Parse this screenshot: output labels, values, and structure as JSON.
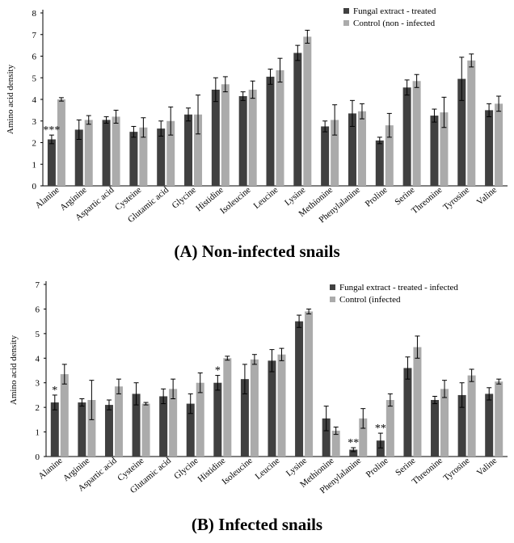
{
  "chart_data": [
    {
      "type": "bar",
      "caption": "(A) Non-infected snails",
      "ylabel": "Amino acid density",
      "ylim": [
        0,
        8
      ],
      "yticks": [
        0,
        1,
        2,
        3,
        4,
        5,
        6,
        7,
        8
      ],
      "grid": false,
      "legend_position": "top-right",
      "categories": [
        "Alanine",
        "Arginine",
        "Aspartic acid",
        "Cysteine",
        "Glutamic acid",
        "Glycine",
        "Histidine",
        "Isoleucine",
        "Leucine",
        "Lysine",
        "Methionine",
        "Phenylalanine",
        "Proline",
        "Serine",
        "Threonine",
        "Tyrosine",
        "Valine"
      ],
      "series": [
        {
          "name": "Fungal extract - treated",
          "color": "#404040",
          "values": [
            2.15,
            2.6,
            3.05,
            2.5,
            2.65,
            3.3,
            4.45,
            4.15,
            5.05,
            6.15,
            2.75,
            3.35,
            2.1,
            4.55,
            3.25,
            4.95,
            3.5
          ],
          "errors": [
            0.2,
            0.45,
            0.15,
            0.25,
            0.35,
            0.3,
            0.55,
            0.2,
            0.35,
            0.35,
            0.25,
            0.6,
            0.15,
            0.35,
            0.3,
            1.0,
            0.3
          ]
        },
        {
          "name": "Control (non - infected",
          "color": "#ababab",
          "values": [
            4.0,
            3.05,
            3.2,
            2.7,
            3.0,
            3.3,
            4.7,
            4.45,
            5.35,
            6.9,
            3.05,
            3.45,
            2.8,
            4.85,
            3.4,
            5.8,
            3.8
          ],
          "errors": [
            0.08,
            0.2,
            0.3,
            0.45,
            0.65,
            0.9,
            0.35,
            0.4,
            0.55,
            0.3,
            0.7,
            0.35,
            0.55,
            0.3,
            0.7,
            0.3,
            0.35
          ]
        }
      ],
      "annotations": [
        {
          "category": "Alanine",
          "text": "***"
        }
      ]
    },
    {
      "type": "bar",
      "caption": "(B) Infected snails",
      "ylabel": "Amino acid density",
      "ylim": [
        0,
        7
      ],
      "yticks": [
        0,
        1,
        2,
        3,
        4,
        5,
        6,
        7
      ],
      "grid": false,
      "legend_position": "top-right",
      "categories": [
        "Alanine",
        "Arginine",
        "Aspartic acid",
        "Cysteine",
        "Glutamic acid",
        "Glycine",
        "Histidine",
        "Isoleucine",
        "Leucine",
        "Lysine",
        "Methionine",
        "Phenylalanine",
        "Proline",
        "Serine",
        "Threonine",
        "Tyrosine",
        "Valine"
      ],
      "series": [
        {
          "name": "Fungal extract - treated - infected",
          "color": "#404040",
          "values": [
            2.2,
            2.2,
            2.1,
            2.55,
            2.45,
            2.15,
            3.0,
            3.15,
            3.9,
            5.5,
            1.55,
            0.28,
            0.65,
            3.6,
            2.3,
            2.5,
            2.55
          ],
          "errors": [
            0.3,
            0.15,
            0.2,
            0.45,
            0.3,
            0.4,
            0.3,
            0.6,
            0.45,
            0.25,
            0.5,
            0.08,
            0.3,
            0.45,
            0.15,
            0.5,
            0.25
          ]
        },
        {
          "name": "Control (infected",
          "color": "#ababab",
          "values": [
            3.35,
            2.3,
            2.85,
            2.15,
            2.75,
            3.0,
            4.0,
            3.95,
            4.15,
            5.9,
            1.05,
            1.55,
            2.3,
            4.45,
            2.75,
            3.3,
            3.05
          ],
          "errors": [
            0.4,
            0.8,
            0.3,
            0.05,
            0.4,
            0.4,
            0.08,
            0.2,
            0.25,
            0.1,
            0.15,
            0.4,
            0.25,
            0.45,
            0.35,
            0.25,
            0.1
          ]
        }
      ],
      "annotations": [
        {
          "category": "Alanine",
          "text": "*"
        },
        {
          "category": "Histidine",
          "text": "*"
        },
        {
          "category": "Phenylalanine",
          "text": "**"
        },
        {
          "category": "Proline",
          "text": "**"
        }
      ]
    }
  ]
}
